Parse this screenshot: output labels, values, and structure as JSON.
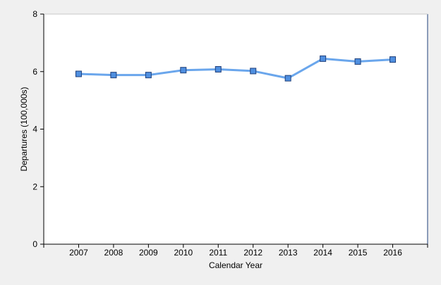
{
  "chart_data": {
    "type": "line",
    "xlabel": "Calendar Year",
    "ylabel": "Departures (100,000s)",
    "ylim": [
      0,
      8
    ],
    "yticks": [
      0,
      2,
      4,
      6,
      8
    ],
    "ytick_labels": [
      "0",
      "2",
      "4",
      "6",
      "8"
    ],
    "categories": [
      "2007",
      "2008",
      "2009",
      "2010",
      "2011",
      "2012",
      "2013",
      "2014",
      "2015",
      "2016"
    ],
    "series": [
      {
        "values": [
          5.92,
          5.88,
          5.88,
          6.05,
          6.08,
          6.02,
          5.77,
          6.45,
          6.35,
          6.42
        ]
      }
    ],
    "grid": false,
    "legend": "none",
    "colors": {
      "line": "#6aa6ec",
      "marker_fill": "#4f8fe0",
      "marker_stroke": "#1f3f7a",
      "background": "#f0f0f0",
      "plot_background": "#ffffff",
      "axis": "#000000",
      "frame": "#1f3f7a"
    }
  }
}
